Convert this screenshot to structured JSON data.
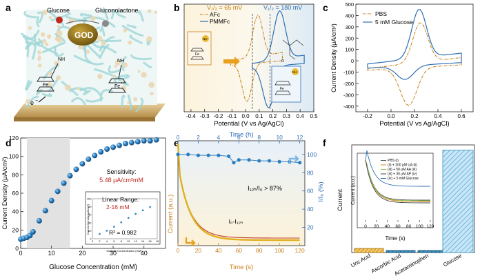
{
  "panel_labels": [
    "a",
    "b",
    "c",
    "d",
    "e",
    "f"
  ],
  "panel_a": {
    "glucose": "Glucose",
    "gluconolactone": "Gluconolactone",
    "enzyme": "GOD",
    "nh": "NH",
    "fe": "Fe",
    "fe_plus": "Fe",
    "plus": "+",
    "electron": "e",
    "minus": "−"
  },
  "colors": {
    "orange": "#d08a1a",
    "blue": "#2f6fb3",
    "sphere": "#2a7fc1",
    "red": "#c0392b",
    "hatch_orange": "#e0a020",
    "hatch_blue": "#5aaad8"
  },
  "chart_data": [
    {
      "panel": "b",
      "type": "line",
      "xlabel": "Potential (V vs Ag/AgCl)",
      "ylabel": "",
      "xlim": [
        -0.45,
        0.5
      ],
      "xticks": [
        "-0.4",
        "-0.3",
        "-0.2",
        "-0.1",
        "0.0",
        "0.1",
        "0.2",
        "0.3",
        "0.4",
        "0.5"
      ],
      "annotations": [
        "V₁/₂ = 65 mV",
        "V₁/₂ = 180 mV",
        "NH",
        "Fe",
        "NH",
        "Fe",
        "O"
      ],
      "legend": [
        "AFc",
        "PMMFc"
      ],
      "markers": {
        "dashed_v": [
          0.05,
          0.18
        ]
      },
      "series": [
        {
          "name": "AFc",
          "style": "dash-dot",
          "peak_anodic_x": 0.09,
          "peak_cathodic_x": 0.03
        },
        {
          "name": "PMMFc",
          "style": "solid",
          "peak_anodic_x": 0.25,
          "peak_cathodic_x": 0.13
        }
      ]
    },
    {
      "panel": "c",
      "type": "line",
      "xlabel": "Potential (V vs Ag/AgCl)",
      "ylabel": "Current Density (μA/cm²)",
      "xlim": [
        -0.3,
        0.7
      ],
      "ylim": [
        -450,
        500
      ],
      "xticks": [
        "-0.2",
        "0.0",
        "0.2",
        "0.4",
        "0.6"
      ],
      "yticks": [
        "-400",
        "-300",
        "-200",
        "-100",
        "0",
        "100",
        "200",
        "300",
        "400",
        "500"
      ],
      "legend": [
        "PBS",
        "5 mM Glucose"
      ],
      "series": [
        {
          "name": "PBS",
          "style": "dash-dot",
          "anodic_peak": [
            0.25,
            330
          ],
          "cathodic_peak": [
            0.15,
            -390
          ]
        },
        {
          "name": "5 mM Glucose",
          "style": "solid",
          "anodic_peak": [
            0.24,
            450
          ],
          "cathodic_peak": [
            0.12,
            -160
          ]
        }
      ]
    },
    {
      "panel": "d",
      "type": "scatter",
      "xlabel": "Glucose Concentration (mM)",
      "ylabel": "Current Density (μA/cm²)",
      "xlim": [
        0,
        47
      ],
      "ylim": [
        0,
        120
      ],
      "xticks": [
        "0",
        "10",
        "20",
        "30",
        "40"
      ],
      "yticks": [
        "0",
        "20",
        "40",
        "60",
        "80",
        "100",
        "120"
      ],
      "shaded_range": [
        2,
        16
      ],
      "sensitivity_label": "Sensitivity:",
      "sensitivity_value": "5.48 μA/cm²mM",
      "x": [
        0,
        1,
        2,
        3,
        4,
        6,
        8,
        10,
        12,
        14,
        16,
        18,
        20,
        22,
        24,
        26,
        28,
        30,
        32,
        34,
        36,
        38,
        40,
        42,
        44
      ],
      "y": [
        10,
        11,
        12,
        14,
        18,
        30,
        41,
        52,
        62,
        71,
        79,
        86,
        92,
        97,
        101,
        105,
        108,
        110,
        112,
        114,
        115,
        116,
        117,
        117,
        118
      ],
      "inset": {
        "title": "Linear Range:",
        "range": "2-16 mM",
        "r2": "R² = 0.982",
        "xlabel": "Glucose Concentration (mM)",
        "ylabel": "Current Density (μA/cm²)",
        "xlim": [
          0,
          18
        ],
        "ylim": [
          0,
          100
        ],
        "xticks": [
          "0",
          "2",
          "4",
          "6",
          "8",
          "10",
          "12",
          "14",
          "16",
          "18"
        ],
        "yticks": [
          "0",
          "20",
          "40",
          "60",
          "80",
          "100"
        ],
        "x": [
          2,
          4,
          6,
          8,
          10,
          12,
          14,
          16
        ],
        "y": [
          12,
          20,
          30,
          41,
          52,
          62,
          71,
          79
        ]
      }
    },
    {
      "panel": "e",
      "type": "line",
      "xlabel": "Time (s)",
      "x2label": "Time (h)",
      "ylabel": "Current (a.u.)",
      "y2label": "I/I₀ (%)",
      "xlim": [
        0,
        125
      ],
      "x2lim": [
        0,
        12.5
      ],
      "y2lim": [
        0,
        115
      ],
      "xticks": [
        "0",
        "20",
        "40",
        "60",
        "80",
        "100",
        "120"
      ],
      "x2ticks": [
        "0",
        "2",
        "4",
        "6",
        "8",
        "10",
        "12"
      ],
      "y2ticks": [
        "20",
        "40",
        "60",
        "80",
        "100"
      ],
      "retention_label": "I₁₂ₕ/I₀ > 87%",
      "decay_label": "I₀-I₁₂ₕ",
      "retention": {
        "x": [
          0,
          1,
          2,
          3,
          4,
          5,
          5.5,
          6,
          7,
          8,
          9,
          10,
          11,
          12
        ],
        "y": [
          100,
          100,
          99,
          99,
          99,
          98,
          91,
          94,
          94,
          93,
          93,
          92,
          92,
          91
        ]
      },
      "decay_series": [
        {
          "name": "I0",
          "color": "#c0392b"
        },
        {
          "name": "I12h",
          "color": "#e0b020"
        }
      ]
    },
    {
      "panel": "f",
      "type": "bar",
      "ylabel": "Current",
      "categories": [
        "Uric Acid",
        "Ascorbic Acid",
        "Acetaminophen",
        "Glucose"
      ],
      "values": [
        4,
        2,
        2,
        100
      ],
      "ylim": [
        0,
        105
      ],
      "inset": {
        "xlabel": "Time (s)",
        "ylabel": "Current (a.u.)",
        "xlim": [
          0,
          120
        ],
        "xticks": [
          "0",
          "20",
          "40",
          "60",
          "80",
          "100",
          "120"
        ],
        "legend": [
          "PBS (i)",
          "(ii) + 200 μM UA (ii)",
          "(iii) + 50 μM AA (iii)",
          "(iii) + 30 μM AP (iv)",
          "(iv) + 5 mM Glucose"
        ],
        "series": [
          {
            "name": "PBS",
            "color": "#555555"
          },
          {
            "name": "UA",
            "color": "#e08a20"
          },
          {
            "name": "AA",
            "color": "#8bc34a"
          },
          {
            "name": "AP",
            "color": "#444444"
          },
          {
            "name": "Glucose",
            "color": "#2f6fb3"
          }
        ]
      }
    }
  ]
}
